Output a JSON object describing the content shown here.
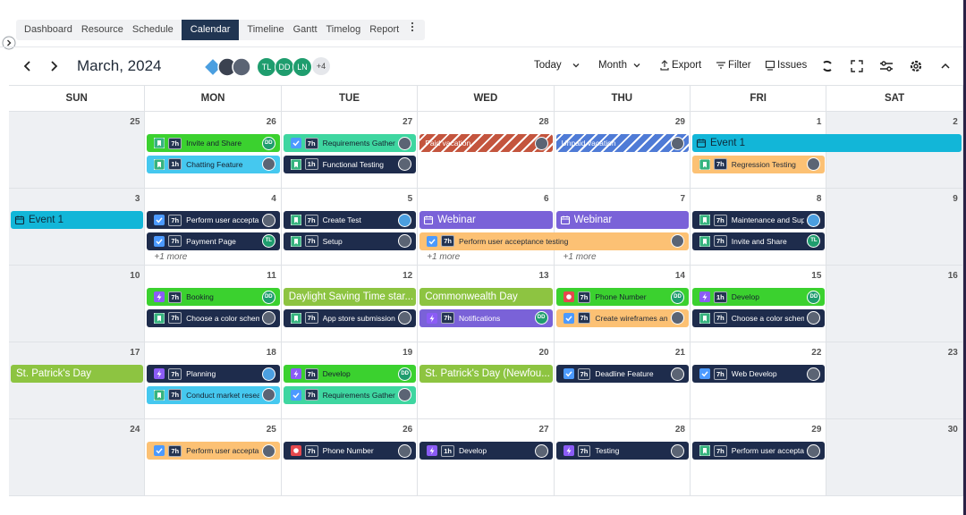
{
  "tabs": {
    "items": [
      "Dashboard",
      "Resource",
      "Schedule",
      "Calendar",
      "Timeline",
      "Gantt",
      "Timelog",
      "Report"
    ],
    "active": 3
  },
  "toolbar": {
    "title": "March, 2024",
    "members": [
      {
        "initials": "TL",
        "color": "#1f9d6e"
      },
      {
        "initials": "DD",
        "color": "#1f9d6e"
      },
      {
        "initials": "LN",
        "color": "#1f9d6e"
      }
    ],
    "more_members": "+4",
    "actions": [
      "Today",
      "Month",
      "Export",
      "Filter",
      "Issues"
    ]
  },
  "styles": {
    "green": {
      "color": "#3bd12f",
      "text_color": "#16202e"
    },
    "cyan": {
      "color": "#45c8ef",
      "text_color": "#16202e"
    },
    "mint": {
      "color": "#3ed6a0",
      "text_color": "#16202e"
    },
    "navy": {
      "color": "#1e2c4c",
      "text_color": "#ffffff"
    },
    "orange": {
      "color": "#fcc174",
      "text_color": "#1f2937"
    },
    "purple": {
      "color": "#7a62d8",
      "text_color": "#ffffff"
    },
    "olive": {
      "color": "#8dc441",
      "text_color": "#ffffff"
    },
    "event": {
      "color": "#12b6d8",
      "text_color": "#0f2a3a"
    },
    "paid": {
      "color": "#c4553e",
      "text_color": "#ffffff",
      "striped": true
    },
    "unpaid": {
      "color": "#4f7bd6",
      "text_color": "#ffffff",
      "striped": true
    }
  },
  "calendar": {
    "weekdays": [
      "SUN",
      "MON",
      "TUE",
      "WED",
      "THU",
      "FRI",
      "SAT"
    ],
    "weekend_color": "#eef0f3",
    "weeks": [
      {
        "days": [
          {
            "date": "25",
            "events": []
          },
          {
            "date": "26",
            "events": [
              {
                "title": "Invite and Share",
                "hours": "7h",
                "icon": "story",
                "style": "green",
                "avatar": "DD",
                "avatar_color": "#1f9d6e"
              },
              {
                "title": "Chatting Feature",
                "hours": "1h",
                "icon": "story",
                "style": "cyan",
                "avatar_color": "#5b6474"
              }
            ]
          },
          {
            "date": "27",
            "events": [
              {
                "title": "Requirements Gatheri",
                "hours": "7h",
                "icon": "check",
                "style": "mint",
                "avatar_color": "#5b6474"
              },
              {
                "title": "Functional Testing",
                "hours": "1h",
                "icon": "story",
                "style": "navy",
                "avatar_color": "#5b6474"
              }
            ]
          },
          {
            "date": "28",
            "events": [
              {
                "title": "Paid vacation",
                "style": "paid",
                "avatar_color": "#5b6474"
              }
            ]
          },
          {
            "date": "29",
            "events": [
              {
                "title": "Unpaid vacation",
                "style": "unpaid",
                "avatar_color": "#5b6474"
              }
            ]
          },
          {
            "date": "1",
            "events": [
              {
                "title": "Event 1",
                "icon": "calendar",
                "style": "event",
                "span": 2
              },
              {
                "title": "Regression Testing",
                "hours": "7h",
                "icon": "story",
                "style": "orange",
                "avatar_color": "#5b6474"
              }
            ]
          },
          {
            "date": "2",
            "events": []
          }
        ]
      },
      {
        "days": [
          {
            "date": "3",
            "events": [
              {
                "title": "Event 1",
                "icon": "calendar",
                "style": "event"
              }
            ]
          },
          {
            "date": "4",
            "more": "+1 more",
            "events": [
              {
                "title": "Perform user accepta",
                "hours": "7h",
                "icon": "check",
                "style": "navy",
                "avatar_color": "#5b6474"
              },
              {
                "title": "Payment Page",
                "hours": "7h",
                "icon": "check",
                "style": "navy",
                "avatar": "TL",
                "avatar_color": "#1f9d6e"
              }
            ]
          },
          {
            "date": "5",
            "events": [
              {
                "title": "Create Test",
                "hours": "7h",
                "icon": "story",
                "style": "navy",
                "avatar_color": "#4b9fe0"
              },
              {
                "title": "Setup",
                "hours": "7h",
                "icon": "story",
                "style": "navy",
                "avatar_color": "#5b6474"
              }
            ]
          },
          {
            "date": "6",
            "more": "+1 more",
            "events": [
              {
                "title": "Webinar",
                "icon": "calendar",
                "style": "purple"
              },
              {
                "title": "Perform user acceptance testing",
                "hours": "7h",
                "icon": "check",
                "style": "orange",
                "avatar_color": "#5b6474",
                "span": 2
              }
            ]
          },
          {
            "date": "7",
            "more": "+1 more",
            "events": [
              {
                "title": "Webinar",
                "icon": "calendar",
                "style": "purple"
              }
            ]
          },
          {
            "date": "8",
            "events": [
              {
                "title": "Maintenance and Sup",
                "hours": "7h",
                "icon": "story",
                "style": "navy",
                "avatar_color": "#4b9fe0"
              },
              {
                "title": "Invite and Share",
                "hours": "7h",
                "icon": "story",
                "style": "navy",
                "avatar": "TL",
                "avatar_color": "#1f9d6e"
              }
            ]
          },
          {
            "date": "9",
            "events": []
          }
        ]
      },
      {
        "days": [
          {
            "date": "10",
            "events": []
          },
          {
            "date": "11",
            "events": [
              {
                "title": "Booking",
                "hours": "7h",
                "icon": "bolt",
                "style": "green",
                "avatar": "DD",
                "avatar_color": "#1f9d6e"
              },
              {
                "title": "Choose a color schem",
                "hours": "7h",
                "icon": "story",
                "style": "navy",
                "avatar_color": "#5b6474"
              }
            ]
          },
          {
            "date": "12",
            "events": [
              {
                "title": "Daylight Saving Time star...",
                "style": "olive"
              },
              {
                "title": "App store submission",
                "hours": "7h",
                "icon": "story",
                "style": "navy",
                "avatar_color": "#5b6474"
              }
            ]
          },
          {
            "date": "13",
            "events": [
              {
                "title": "Commonwealth Day",
                "style": "olive"
              },
              {
                "title": "Notifications",
                "hours": "7h",
                "icon": "bolt",
                "style": "purple",
                "avatar": "DD",
                "avatar_color": "#1f9d6e"
              }
            ]
          },
          {
            "date": "14",
            "events": [
              {
                "title": "Phone Number",
                "hours": "7h",
                "icon": "bug",
                "style": "green",
                "avatar": "DD",
                "avatar_color": "#1f9d6e"
              },
              {
                "title": "Create wireframes an",
                "hours": "7h",
                "icon": "check",
                "style": "orange",
                "avatar_color": "#5b6474"
              }
            ]
          },
          {
            "date": "15",
            "events": [
              {
                "title": "Develop",
                "hours": "1h",
                "icon": "bolt",
                "style": "green",
                "avatar": "DD",
                "avatar_color": "#1f9d6e"
              },
              {
                "title": "Choose a color schem",
                "hours": "7h",
                "icon": "story",
                "style": "navy",
                "avatar_color": "#5b6474"
              }
            ]
          },
          {
            "date": "16",
            "events": []
          }
        ]
      },
      {
        "days": [
          {
            "date": "17",
            "events": [
              {
                "title": "St. Patrick's Day",
                "style": "olive"
              }
            ]
          },
          {
            "date": "18",
            "events": [
              {
                "title": "Planning",
                "hours": "7h",
                "icon": "bolt",
                "style": "navy",
                "avatar_color": "#4b9fe0"
              },
              {
                "title": "Conduct market resea",
                "hours": "7h",
                "icon": "story",
                "style": "cyan",
                "avatar_color": "#5b6474"
              }
            ]
          },
          {
            "date": "19",
            "events": [
              {
                "title": "Develop",
                "hours": "7h",
                "icon": "bolt",
                "style": "green",
                "avatar": "DD",
                "avatar_color": "#1f9d6e"
              },
              {
                "title": "Requirements Gatheri",
                "hours": "7h",
                "icon": "check",
                "style": "mint",
                "avatar_color": "#5b6474"
              }
            ]
          },
          {
            "date": "20",
            "events": [
              {
                "title": "St. Patrick's Day (Newfou...",
                "style": "olive"
              }
            ]
          },
          {
            "date": "21",
            "events": [
              {
                "title": "Deadline Feature",
                "hours": "7h",
                "icon": "check",
                "style": "navy",
                "avatar_color": "#5b6474"
              }
            ]
          },
          {
            "date": "22",
            "events": [
              {
                "title": "Web Develop",
                "hours": "7h",
                "icon": "check",
                "style": "navy",
                "avatar_color": "#5b6474"
              }
            ]
          },
          {
            "date": "23",
            "events": []
          }
        ]
      },
      {
        "days": [
          {
            "date": "24",
            "events": []
          },
          {
            "date": "25",
            "events": [
              {
                "title": "Perform user accepta",
                "hours": "7h",
                "icon": "check",
                "style": "orange",
                "avatar_color": "#5b6474"
              }
            ]
          },
          {
            "date": "26",
            "events": [
              {
                "title": "Phone Number",
                "hours": "7h",
                "icon": "bug",
                "style": "navy",
                "avatar_color": "#5b6474"
              }
            ]
          },
          {
            "date": "27",
            "events": [
              {
                "title": "Develop",
                "hours": "1h",
                "icon": "bolt",
                "style": "navy",
                "avatar_color": "#5b6474"
              }
            ]
          },
          {
            "date": "28",
            "events": [
              {
                "title": "Testing",
                "hours": "7h",
                "icon": "bolt",
                "style": "navy",
                "avatar_color": "#5b6474"
              }
            ]
          },
          {
            "date": "29",
            "events": [
              {
                "title": "Perform user accepta",
                "hours": "7h",
                "icon": "story",
                "style": "navy",
                "avatar_color": "#5b6474"
              }
            ]
          },
          {
            "date": "30",
            "events": []
          }
        ]
      }
    ]
  }
}
